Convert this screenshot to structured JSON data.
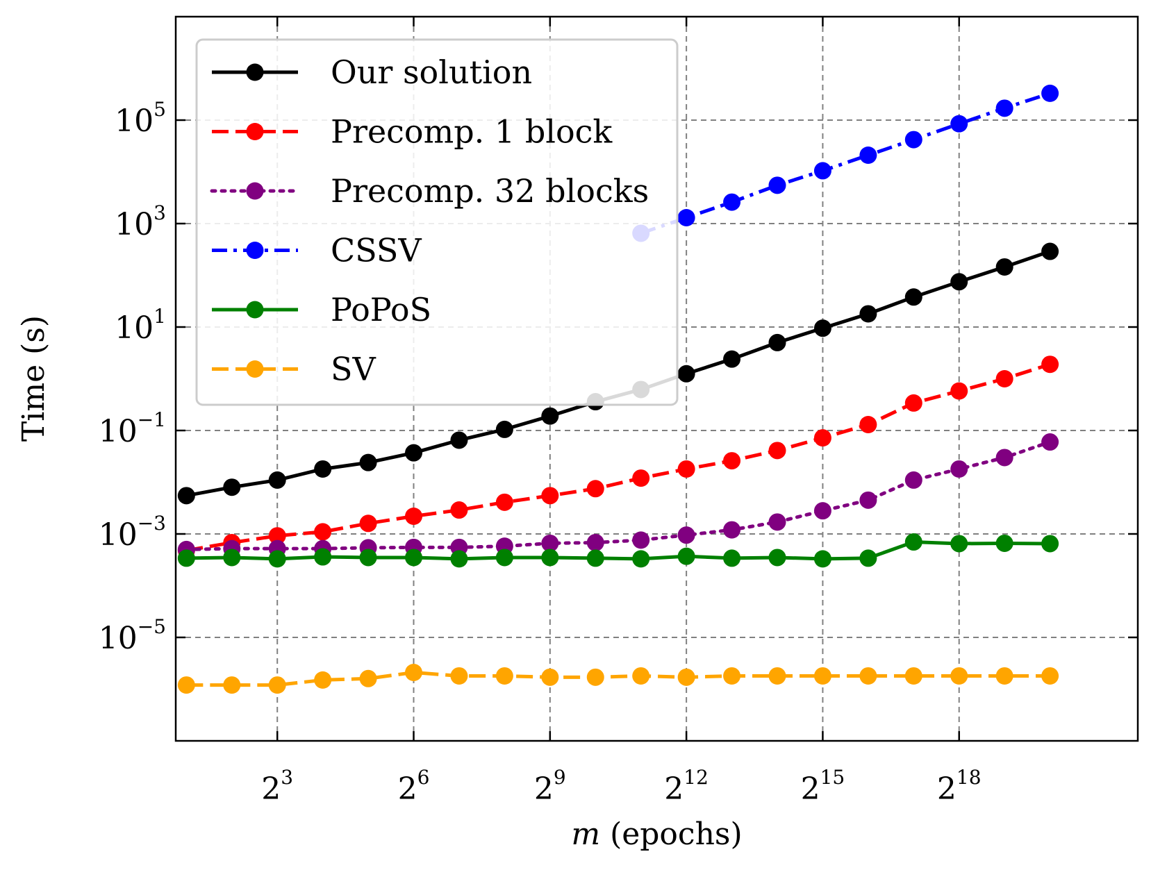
{
  "chart_data": {
    "type": "line",
    "xscale": "log2",
    "yscale": "log10",
    "xlabel_italic": "m",
    "xlabel_rest": " (epochs)",
    "ylabel": "Time (s)",
    "xlim": [
      1.7,
      4000000
    ],
    "ylim": [
      1e-07,
      10000000
    ],
    "grid": true,
    "legend_position": "top-left",
    "x_ticks": [
      {
        "base": "2",
        "exp": "3",
        "value": 8
      },
      {
        "base": "2",
        "exp": "6",
        "value": 64
      },
      {
        "base": "2",
        "exp": "9",
        "value": 512
      },
      {
        "base": "2",
        "exp": "12",
        "value": 4096
      },
      {
        "base": "2",
        "exp": "15",
        "value": 32768
      },
      {
        "base": "2",
        "exp": "18",
        "value": 262144
      }
    ],
    "y_ticks": [
      {
        "base": "10",
        "exp": "5",
        "value": 100000
      },
      {
        "base": "10",
        "exp": "3",
        "value": 1000
      },
      {
        "base": "10",
        "exp": "1",
        "value": 10
      },
      {
        "base": "10",
        "exp": "−1",
        "value": 0.1
      },
      {
        "base": "10",
        "exp": "−3",
        "value": 0.001
      },
      {
        "base": "10",
        "exp": "−5",
        "value": 1e-05
      }
    ],
    "x": [
      2,
      4,
      8,
      16,
      32,
      64,
      128,
      256,
      512,
      1024,
      2048,
      4096,
      8192,
      16384,
      32768,
      65536,
      131072,
      262144,
      524288,
      1048576
    ],
    "series": [
      {
        "name": "Our solution",
        "color": "#000000",
        "line": "solid",
        "values": [
          0.0055,
          0.008,
          0.011,
          0.018,
          0.024,
          0.037,
          0.065,
          0.105,
          0.19,
          0.36,
          0.62,
          1.25,
          2.4,
          5.0,
          9.5,
          18,
          38,
          75,
          145,
          290
        ]
      },
      {
        "name": "Precomp. 1 block",
        "color": "#ff0000",
        "line": "dashed",
        "values": [
          0.00048,
          0.00068,
          0.00092,
          0.0011,
          0.0016,
          0.0022,
          0.0029,
          0.0041,
          0.0055,
          0.0075,
          0.012,
          0.018,
          0.026,
          0.041,
          0.072,
          0.13,
          0.34,
          0.58,
          1.0,
          1.9
        ]
      },
      {
        "name": "Precomp. 32 blocks",
        "color": "#800080",
        "line": "dotted",
        "values": [
          0.0005,
          0.00052,
          0.00052,
          0.00052,
          0.00054,
          0.00055,
          0.00055,
          0.00058,
          0.00066,
          0.00068,
          0.00076,
          0.00095,
          0.0012,
          0.0017,
          0.0028,
          0.0045,
          0.011,
          0.018,
          0.03,
          0.06
        ]
      },
      {
        "name": "CSSV",
        "color": "#0000ff",
        "line": "dashdot",
        "values": [
          null,
          null,
          null,
          null,
          null,
          null,
          null,
          null,
          null,
          null,
          650,
          1300,
          2600,
          5500,
          10500,
          21000,
          42000,
          85000,
          170000,
          330000
        ]
      },
      {
        "name": "PoPoS",
        "color": "#008000",
        "line": "solid",
        "values": [
          0.00034,
          0.00035,
          0.00033,
          0.00036,
          0.00035,
          0.00035,
          0.00033,
          0.00035,
          0.00035,
          0.00034,
          0.00033,
          0.00037,
          0.00034,
          0.00035,
          0.00033,
          0.00034,
          0.0007,
          0.00065,
          0.00066,
          0.00065
        ]
      },
      {
        "name": "SV",
        "color": "#ffa500",
        "line": "dashed",
        "values": [
          1.2e-06,
          1.2e-06,
          1.2e-06,
          1.5e-06,
          1.6e-06,
          2.1e-06,
          1.8e-06,
          1.8e-06,
          1.7e-06,
          1.7e-06,
          1.8e-06,
          1.7e-06,
          1.8e-06,
          1.8e-06,
          1.8e-06,
          1.8e-06,
          1.8e-06,
          1.8e-06,
          1.8e-06,
          1.8e-06
        ]
      }
    ]
  }
}
